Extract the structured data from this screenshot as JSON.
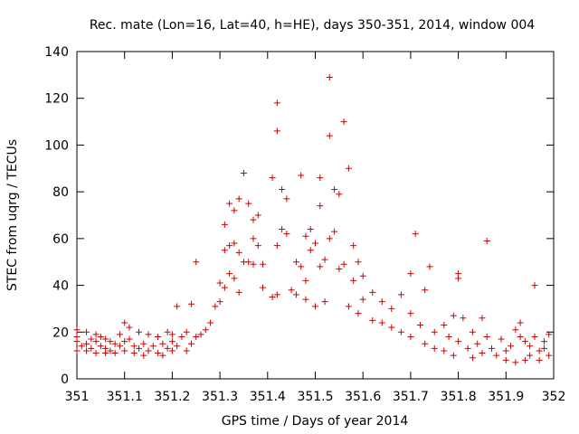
{
  "chart_data": {
    "type": "scatter",
    "title": "Rec. mate (Lon=16, Lat=40, h=HE), days 350-351, 2014, window 004",
    "xlabel": "GPS time / Days of year 2014",
    "ylabel": "STEC from uqrg / TECUs",
    "xlim": [
      351,
      352
    ],
    "ylim": [
      0,
      140
    ],
    "xticks": [
      "351",
      "351.1",
      "351.2",
      "351.3",
      "351.4",
      "351.5",
      "351.6",
      "351.7",
      "351.8",
      "351.9",
      "352"
    ],
    "yticks": [
      "0",
      "20",
      "40",
      "60",
      "80",
      "100",
      "120",
      "140"
    ],
    "grid": false,
    "marker": "+",
    "colors": {
      "marker": "#cc0000",
      "axis": "#000000"
    },
    "series": [
      {
        "points": [
          [
            351.0,
            21
          ],
          [
            351.0,
            18
          ],
          [
            351.0,
            16
          ],
          [
            351.0,
            12
          ],
          [
            351.01,
            14
          ],
          [
            351.02,
            20
          ],
          [
            351.02,
            15
          ],
          [
            351.02,
            12
          ],
          [
            351.03,
            17
          ],
          [
            351.03,
            13
          ],
          [
            351.04,
            19
          ],
          [
            351.04,
            16
          ],
          [
            351.04,
            11
          ],
          [
            351.05,
            18
          ],
          [
            351.05,
            14
          ],
          [
            351.06,
            17
          ],
          [
            351.06,
            13
          ],
          [
            351.06,
            11
          ],
          [
            351.07,
            16
          ],
          [
            351.07,
            12
          ],
          [
            351.08,
            15
          ],
          [
            351.08,
            11
          ],
          [
            351.09,
            19
          ],
          [
            351.09,
            14
          ],
          [
            351.1,
            24
          ],
          [
            351.1,
            16
          ],
          [
            351.1,
            12
          ],
          [
            351.11,
            22
          ],
          [
            351.11,
            17
          ],
          [
            351.12,
            14
          ],
          [
            351.12,
            11
          ],
          [
            351.13,
            20
          ],
          [
            351.13,
            13
          ],
          [
            351.14,
            15
          ],
          [
            351.14,
            10
          ],
          [
            351.15,
            19
          ],
          [
            351.15,
            12
          ],
          [
            351.16,
            14
          ],
          [
            351.17,
            18
          ],
          [
            351.17,
            11
          ],
          [
            351.18,
            15
          ],
          [
            351.18,
            10
          ],
          [
            351.19,
            20
          ],
          [
            351.19,
            13
          ],
          [
            351.2,
            19
          ],
          [
            351.2,
            16
          ],
          [
            351.2,
            12
          ],
          [
            351.21,
            31
          ],
          [
            351.21,
            14
          ],
          [
            351.22,
            18
          ],
          [
            351.23,
            12
          ],
          [
            351.23,
            20
          ],
          [
            351.24,
            32
          ],
          [
            351.24,
            15
          ],
          [
            351.25,
            50
          ],
          [
            351.25,
            18
          ],
          [
            351.26,
            19
          ],
          [
            351.27,
            21
          ],
          [
            351.28,
            24
          ],
          [
            351.29,
            31
          ],
          [
            351.3,
            41
          ],
          [
            351.3,
            33
          ],
          [
            351.31,
            66
          ],
          [
            351.31,
            55
          ],
          [
            351.31,
            39
          ],
          [
            351.32,
            75
          ],
          [
            351.32,
            57
          ],
          [
            351.32,
            45
          ],
          [
            351.33,
            72
          ],
          [
            351.33,
            58
          ],
          [
            351.33,
            43
          ],
          [
            351.34,
            77
          ],
          [
            351.34,
            54
          ],
          [
            351.34,
            37
          ],
          [
            351.35,
            88
          ],
          [
            351.35,
            50
          ],
          [
            351.36,
            75
          ],
          [
            351.36,
            50
          ],
          [
            351.37,
            68
          ],
          [
            351.37,
            60
          ],
          [
            351.37,
            49
          ],
          [
            351.38,
            70
          ],
          [
            351.38,
            57
          ],
          [
            351.39,
            49
          ],
          [
            351.39,
            39
          ],
          [
            351.41,
            86
          ],
          [
            351.41,
            35
          ],
          [
            351.42,
            118
          ],
          [
            351.42,
            106
          ],
          [
            351.42,
            57
          ],
          [
            351.42,
            36
          ],
          [
            351.43,
            81
          ],
          [
            351.43,
            64
          ],
          [
            351.44,
            77
          ],
          [
            351.44,
            62
          ],
          [
            351.45,
            38
          ],
          [
            351.46,
            50
          ],
          [
            351.46,
            36
          ],
          [
            351.47,
            87
          ],
          [
            351.47,
            48
          ],
          [
            351.48,
            61
          ],
          [
            351.48,
            42
          ],
          [
            351.48,
            34
          ],
          [
            351.49,
            64
          ],
          [
            351.49,
            55
          ],
          [
            351.5,
            58
          ],
          [
            351.5,
            31
          ],
          [
            351.51,
            86
          ],
          [
            351.51,
            74
          ],
          [
            351.51,
            48
          ],
          [
            351.52,
            51
          ],
          [
            351.52,
            33
          ],
          [
            351.53,
            129
          ],
          [
            351.53,
            104
          ],
          [
            351.53,
            60
          ],
          [
            351.54,
            81
          ],
          [
            351.54,
            63
          ],
          [
            351.55,
            79
          ],
          [
            351.55,
            47
          ],
          [
            351.56,
            110
          ],
          [
            351.56,
            49
          ],
          [
            351.57,
            90
          ],
          [
            351.57,
            31
          ],
          [
            351.58,
            57
          ],
          [
            351.58,
            42
          ],
          [
            351.59,
            50
          ],
          [
            351.59,
            28
          ],
          [
            351.6,
            44
          ],
          [
            351.6,
            34
          ],
          [
            351.62,
            37
          ],
          [
            351.62,
            25
          ],
          [
            351.64,
            33
          ],
          [
            351.64,
            24
          ],
          [
            351.66,
            30
          ],
          [
            351.66,
            22
          ],
          [
            351.68,
            36
          ],
          [
            351.68,
            20
          ],
          [
            351.7,
            45
          ],
          [
            351.7,
            28
          ],
          [
            351.7,
            18
          ],
          [
            351.71,
            62
          ],
          [
            351.72,
            23
          ],
          [
            351.73,
            38
          ],
          [
            351.73,
            15
          ],
          [
            351.74,
            48
          ],
          [
            351.75,
            20
          ],
          [
            351.75,
            13
          ],
          [
            351.77,
            23
          ],
          [
            351.77,
            12
          ],
          [
            351.78,
            18
          ],
          [
            351.79,
            27
          ],
          [
            351.79,
            10
          ],
          [
            351.8,
            45
          ],
          [
            351.8,
            43
          ],
          [
            351.8,
            16
          ],
          [
            351.81,
            26
          ],
          [
            351.82,
            13
          ],
          [
            351.83,
            20
          ],
          [
            351.83,
            9
          ],
          [
            351.84,
            15
          ],
          [
            351.85,
            26
          ],
          [
            351.85,
            11
          ],
          [
            351.86,
            59
          ],
          [
            351.86,
            18
          ],
          [
            351.87,
            13
          ],
          [
            351.88,
            10
          ],
          [
            351.89,
            17
          ],
          [
            351.9,
            12
          ],
          [
            351.9,
            8
          ],
          [
            351.91,
            14
          ],
          [
            351.92,
            21
          ],
          [
            351.92,
            7
          ],
          [
            351.93,
            24
          ],
          [
            351.93,
            18
          ],
          [
            351.94,
            16
          ],
          [
            351.94,
            8
          ],
          [
            351.95,
            14
          ],
          [
            351.95,
            10
          ],
          [
            351.96,
            40
          ],
          [
            351.96,
            18
          ],
          [
            351.97,
            12
          ],
          [
            351.97,
            8
          ],
          [
            351.98,
            16
          ],
          [
            351.98,
            13
          ],
          [
            351.99,
            19
          ],
          [
            351.99,
            10
          ]
        ]
      }
    ]
  }
}
